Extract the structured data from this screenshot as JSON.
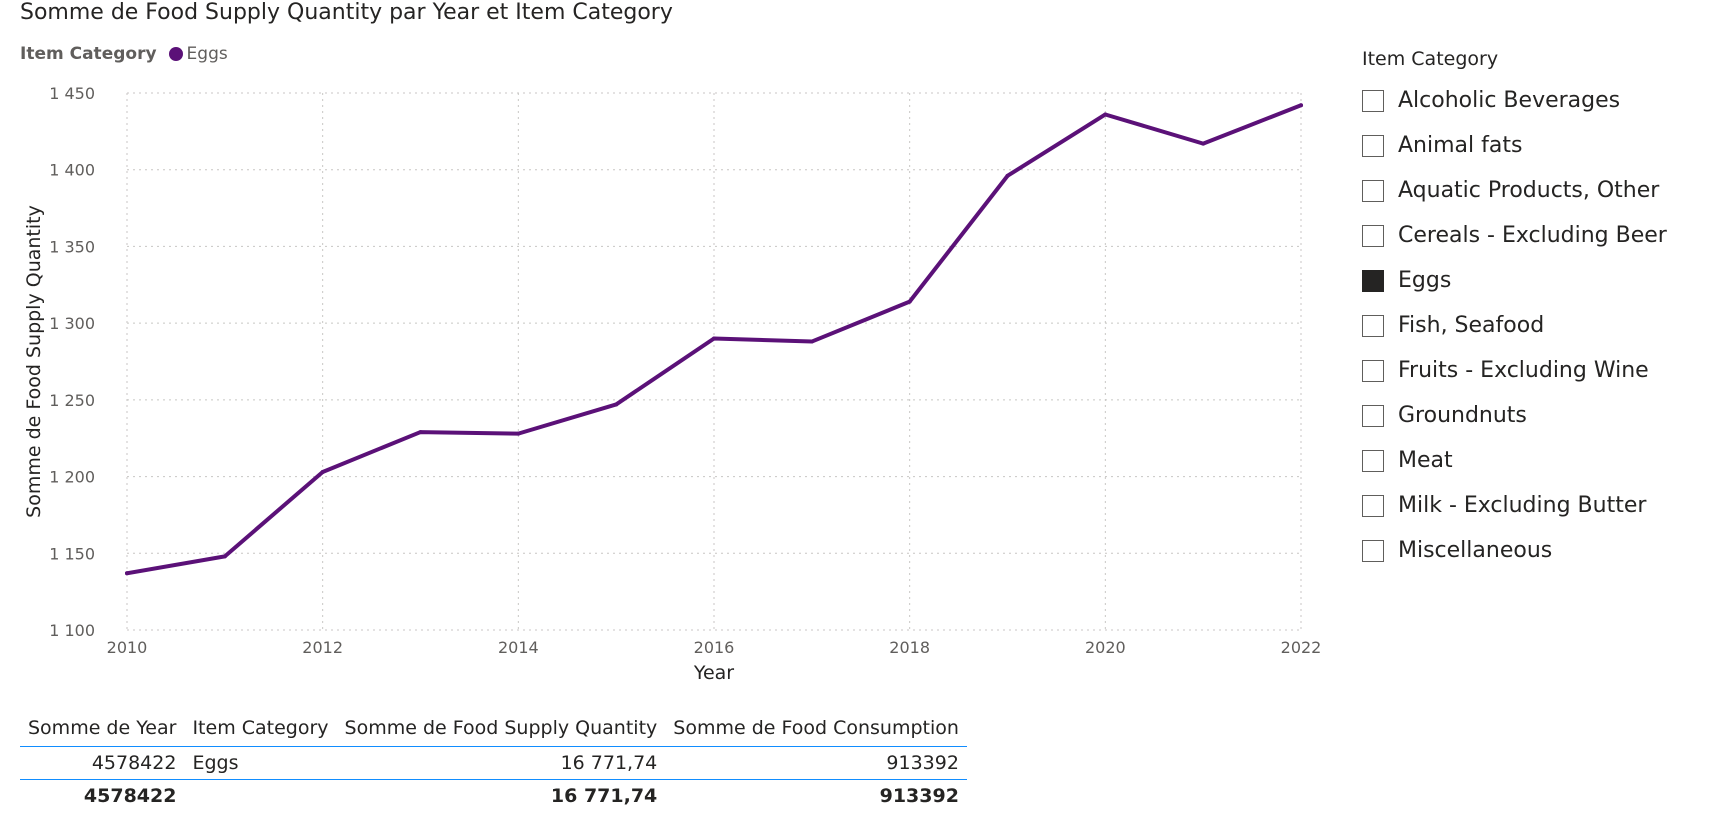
{
  "chart_data": {
    "type": "line",
    "title": "Somme de Food Supply Quantity par Year et Item Category",
    "xlabel": "Year",
    "ylabel": "Somme de Food Supply Quantity",
    "legend": {
      "title": "Item Category",
      "placement": "top-left"
    },
    "x": [
      2010,
      2011,
      2012,
      2013,
      2014,
      2015,
      2016,
      2017,
      2018,
      2019,
      2020,
      2021,
      2022
    ],
    "xticks": [
      "2010",
      "2012",
      "2014",
      "2016",
      "2018",
      "2020",
      "2022"
    ],
    "xlim": [
      2010,
      2022
    ],
    "ylim": [
      1100,
      1450
    ],
    "yticks": [
      "1 100",
      "1 150",
      "1 200",
      "1 250",
      "1 300",
      "1 350",
      "1 400",
      "1 450"
    ],
    "grid": true,
    "series": [
      {
        "name": "Eggs",
        "color": "#5b1178",
        "values": [
          1137,
          1148,
          1203,
          1229,
          1228,
          1247,
          1290,
          1288,
          1314,
          1396,
          1436,
          1417,
          1442
        ]
      }
    ]
  },
  "slicer": {
    "title": "Item Category",
    "items": [
      {
        "label": "Alcoholic Beverages",
        "checked": false
      },
      {
        "label": "Animal fats",
        "checked": false
      },
      {
        "label": "Aquatic Products, Other",
        "checked": false
      },
      {
        "label": "Cereals - Excluding Beer",
        "checked": false
      },
      {
        "label": "Eggs",
        "checked": true
      },
      {
        "label": "Fish, Seafood",
        "checked": false
      },
      {
        "label": "Fruits - Excluding Wine",
        "checked": false
      },
      {
        "label": "Groundnuts",
        "checked": false
      },
      {
        "label": "Meat",
        "checked": false
      },
      {
        "label": "Milk - Excluding Butter",
        "checked": false
      },
      {
        "label": "Miscellaneous",
        "checked": false
      }
    ]
  },
  "table": {
    "headers": [
      "Somme de Year",
      "Item Category",
      "Somme de Food Supply Quantity",
      "Somme de Food Consumption"
    ],
    "rows": [
      [
        "4578422",
        "Eggs",
        "16 771,74",
        "913392"
      ]
    ],
    "total": [
      "4578422",
      "",
      "16 771,74",
      "913392"
    ]
  }
}
